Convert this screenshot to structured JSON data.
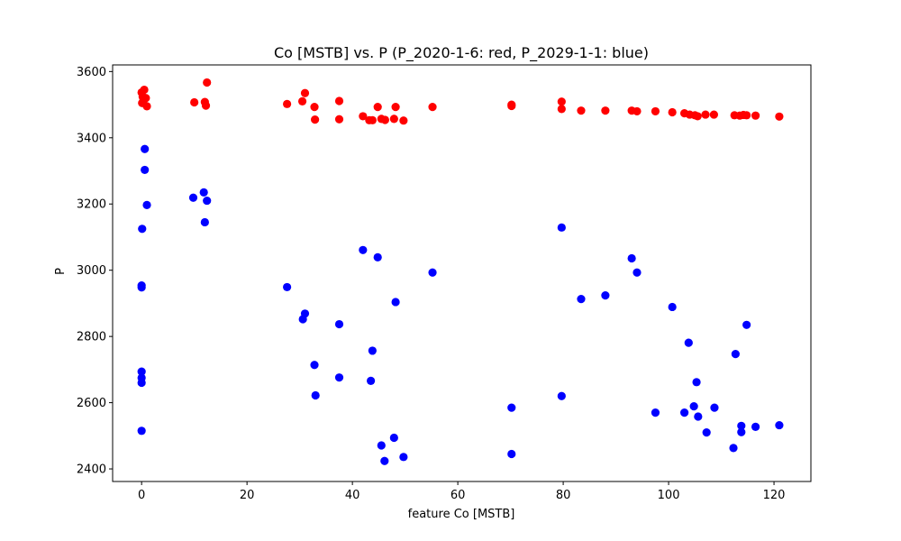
{
  "chart_data": {
    "type": "scatter",
    "title": "Co [MSTB] vs. P (P_2020-1-6: red, P_2029-1-1: blue)",
    "xlabel": "feature Co [MSTB]",
    "ylabel": "P",
    "xlim": [
      -5.5,
      127
    ],
    "ylim": [
      2362,
      3620
    ],
    "xticks": [
      0,
      20,
      40,
      60,
      80,
      100,
      120
    ],
    "yticks": [
      2400,
      2600,
      2800,
      3000,
      3200,
      3400,
      3600
    ],
    "grid": false,
    "series": [
      {
        "color": "#ff0000",
        "points": [
          [
            0,
            3537
          ],
          [
            0.5,
            3545
          ],
          [
            0.2,
            3524
          ],
          [
            0.8,
            3520
          ],
          [
            0.1,
            3505
          ],
          [
            0.3,
            3510
          ],
          [
            1.0,
            3495
          ],
          [
            10,
            3507
          ],
          [
            12,
            3508
          ],
          [
            12.4,
            3567
          ],
          [
            12.2,
            3497
          ],
          [
            27.6,
            3502
          ],
          [
            30.5,
            3510
          ],
          [
            31,
            3535
          ],
          [
            32.8,
            3493
          ],
          [
            32.9,
            3455
          ],
          [
            37.5,
            3511
          ],
          [
            37.5,
            3456
          ],
          [
            42,
            3465
          ],
          [
            43.2,
            3453
          ],
          [
            43.8,
            3453
          ],
          [
            44.8,
            3493
          ],
          [
            45.5,
            3457
          ],
          [
            46.2,
            3454
          ],
          [
            47.9,
            3457
          ],
          [
            48.2,
            3493
          ],
          [
            49.7,
            3452
          ],
          [
            55.2,
            3493
          ],
          [
            70.2,
            3500
          ],
          [
            70.2,
            3496
          ],
          [
            79.7,
            3509
          ],
          [
            79.7,
            3487
          ],
          [
            83.4,
            3482
          ],
          [
            88,
            3482
          ],
          [
            93,
            3482
          ],
          [
            94,
            3480
          ],
          [
            97.5,
            3480
          ],
          [
            100.7,
            3477
          ],
          [
            103,
            3474
          ],
          [
            104,
            3470
          ],
          [
            105,
            3468
          ],
          [
            105.5,
            3465
          ],
          [
            107,
            3470
          ],
          [
            108.6,
            3470
          ],
          [
            112.5,
            3468
          ],
          [
            113.5,
            3467
          ],
          [
            114.2,
            3469
          ],
          [
            114.8,
            3468
          ],
          [
            116.5,
            3467
          ],
          [
            121,
            3464
          ]
        ]
      },
      {
        "color": "#0000ff",
        "points": [
          [
            0.6,
            3366
          ],
          [
            0.6,
            3303
          ],
          [
            1.0,
            3197
          ],
          [
            0.1,
            3125
          ],
          [
            0,
            2954
          ],
          [
            0,
            2948
          ],
          [
            0,
            2694
          ],
          [
            0,
            2675
          ],
          [
            0,
            2660
          ],
          [
            0,
            2515
          ],
          [
            9.8,
            3219
          ],
          [
            11.8,
            3235
          ],
          [
            12.4,
            3210
          ],
          [
            12.0,
            3145
          ],
          [
            27.6,
            2949
          ],
          [
            30.6,
            2852
          ],
          [
            31,
            2869
          ],
          [
            32.8,
            2714
          ],
          [
            33,
            2622
          ],
          [
            37.5,
            2837
          ],
          [
            37.5,
            2676
          ],
          [
            42,
            3061
          ],
          [
            43.5,
            2666
          ],
          [
            43.8,
            2757
          ],
          [
            44.8,
            3039
          ],
          [
            45.5,
            2471
          ],
          [
            46.1,
            2424
          ],
          [
            47.9,
            2494
          ],
          [
            48.2,
            2904
          ],
          [
            49.7,
            2436
          ],
          [
            55.2,
            2993
          ],
          [
            70.2,
            2585
          ],
          [
            70.2,
            2445
          ],
          [
            79.7,
            3129
          ],
          [
            79.7,
            2620
          ],
          [
            83.4,
            2913
          ],
          [
            88,
            2924
          ],
          [
            93,
            3036
          ],
          [
            94,
            2993
          ],
          [
            97.5,
            2570
          ],
          [
            100.7,
            2889
          ],
          [
            103,
            2570
          ],
          [
            103.8,
            2781
          ],
          [
            104.8,
            2589
          ],
          [
            105.3,
            2662
          ],
          [
            105.6,
            2558
          ],
          [
            107.2,
            2510
          ],
          [
            108.7,
            2585
          ],
          [
            112.3,
            2463
          ],
          [
            112.7,
            2747
          ],
          [
            113.8,
            2530
          ],
          [
            113.8,
            2511
          ],
          [
            114.8,
            2835
          ],
          [
            116.5,
            2527
          ],
          [
            121,
            2532
          ]
        ]
      }
    ]
  }
}
